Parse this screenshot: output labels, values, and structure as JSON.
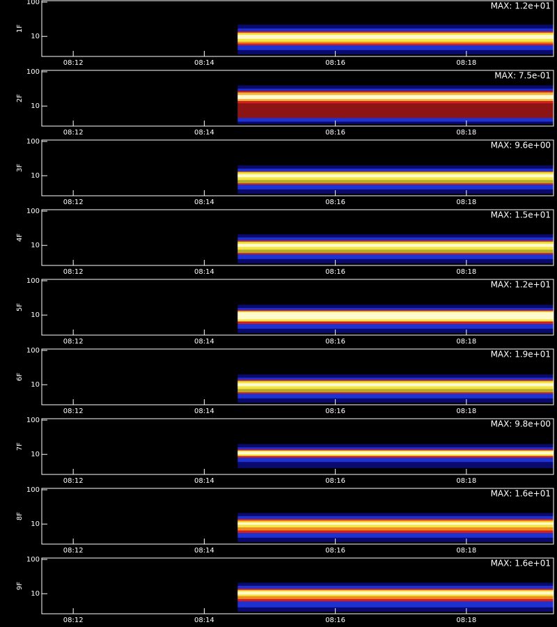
{
  "chart_data": [
    {
      "type": "spectrogram",
      "ylabel": "1F",
      "annotation": "MAX: 1.2e+01",
      "log": true,
      "xlim": [
        11.52,
        19.33
      ],
      "ylim": [
        2.6,
        110
      ],
      "xticks": [
        {
          "value": 12,
          "label": "08:12"
        },
        {
          "value": 14,
          "label": "08:14"
        },
        {
          "value": 16,
          "label": "08:16"
        },
        {
          "value": 18,
          "label": "08:18"
        }
      ],
      "yticks": [
        10,
        100
      ],
      "start": 14.51,
      "bands": [
        {
          "color": "#0a0a6e",
          "low": 3,
          "high": 22
        },
        {
          "color": "#1e32d2",
          "low": 4,
          "high": 17
        },
        {
          "color": "#d21e1e",
          "low": 5.5,
          "high": 14
        },
        {
          "color": "#f08c1e",
          "low": 6.2,
          "high": 13
        },
        {
          "color": "#f0e646",
          "low": 7,
          "high": 12.5
        },
        {
          "color": "#fffacd",
          "low": 8.5,
          "high": 11
        }
      ]
    },
    {
      "type": "spectrogram",
      "ylabel": "2F",
      "annotation": "MAX: 7.5e-01",
      "log": true,
      "xlim": [
        11.52,
        19.33
      ],
      "ylim": [
        2.6,
        110
      ],
      "xticks": [
        {
          "value": 12,
          "label": "08:12"
        },
        {
          "value": 14,
          "label": "08:14"
        },
        {
          "value": 16,
          "label": "08:16"
        },
        {
          "value": 18,
          "label": "08:18"
        }
      ],
      "yticks": [
        10,
        100
      ],
      "start": 14.51,
      "bands": [
        {
          "color": "#0a0a6e",
          "low": 3,
          "high": 40
        },
        {
          "color": "#1e32d2",
          "low": 3.5,
          "high": 32
        },
        {
          "color": "#8c1414",
          "low": 4.5,
          "high": 28
        },
        {
          "color": "#d21e1e",
          "low": 12,
          "high": 27
        },
        {
          "color": "#f0b43c",
          "low": 14,
          "high": 25
        },
        {
          "color": "#fffacd",
          "low": 16,
          "high": 21
        }
      ]
    },
    {
      "type": "spectrogram",
      "ylabel": "3F",
      "annotation": "MAX: 9.6e+00",
      "log": true,
      "xlim": [
        11.52,
        19.33
      ],
      "ylim": [
        2.6,
        110
      ],
      "xticks": [
        {
          "value": 12,
          "label": "08:12"
        },
        {
          "value": 14,
          "label": "08:14"
        },
        {
          "value": 16,
          "label": "08:16"
        },
        {
          "value": 18,
          "label": "08:18"
        }
      ],
      "yticks": [
        10,
        100
      ],
      "start": 14.51,
      "bands": [
        {
          "color": "#0a0a6e",
          "low": 3,
          "high": 20
        },
        {
          "color": "#1e32d2",
          "low": 4,
          "high": 16
        },
        {
          "color": "#d21e1e",
          "low": 5.5,
          "high": 13.5
        },
        {
          "color": "#b4aa28",
          "low": 6,
          "high": 13
        },
        {
          "color": "#f0e646",
          "low": 7.5,
          "high": 12.5
        },
        {
          "color": "#fffacd",
          "low": 9,
          "high": 11
        }
      ]
    },
    {
      "type": "spectrogram",
      "ylabel": "4F",
      "annotation": "MAX: 1.5e+01",
      "log": true,
      "xlim": [
        11.52,
        19.33
      ],
      "ylim": [
        2.6,
        110
      ],
      "xticks": [
        {
          "value": 12,
          "label": "08:12"
        },
        {
          "value": 14,
          "label": "08:14"
        },
        {
          "value": 16,
          "label": "08:16"
        },
        {
          "value": 18,
          "label": "08:18"
        }
      ],
      "yticks": [
        10,
        100
      ],
      "start": 14.51,
      "bands": [
        {
          "color": "#0a0a6e",
          "low": 3,
          "high": 21
        },
        {
          "color": "#1e32d2",
          "low": 4,
          "high": 17
        },
        {
          "color": "#d21e1e",
          "low": 5.5,
          "high": 14
        },
        {
          "color": "#b4aa28",
          "low": 6,
          "high": 13
        },
        {
          "color": "#f0e646",
          "low": 7.5,
          "high": 12.5
        },
        {
          "color": "#fffacd",
          "low": 9,
          "high": 11
        }
      ]
    },
    {
      "type": "spectrogram",
      "ylabel": "5F",
      "annotation": "MAX: 1.2e+01",
      "log": true,
      "xlim": [
        11.52,
        19.33
      ],
      "ylim": [
        2.6,
        110
      ],
      "xticks": [
        {
          "value": 12,
          "label": "08:12"
        },
        {
          "value": 14,
          "label": "08:14"
        },
        {
          "value": 16,
          "label": "08:16"
        },
        {
          "value": 18,
          "label": "08:18"
        }
      ],
      "yticks": [
        10,
        100
      ],
      "start": 14.51,
      "bands": [
        {
          "color": "#0a0a6e",
          "low": 3,
          "high": 20
        },
        {
          "color": "#1e32d2",
          "low": 4,
          "high": 16
        },
        {
          "color": "#d21e1e",
          "low": 5.5,
          "high": 14
        },
        {
          "color": "#f0e646",
          "low": 6.5,
          "high": 13
        },
        {
          "color": "#fffacd",
          "low": 7.5,
          "high": 12
        }
      ]
    },
    {
      "type": "spectrogram",
      "ylabel": "6F",
      "annotation": "MAX: 1.9e+01",
      "log": true,
      "xlim": [
        11.52,
        19.33
      ],
      "ylim": [
        2.6,
        110
      ],
      "xticks": [
        {
          "value": 12,
          "label": "08:12"
        },
        {
          "value": 14,
          "label": "08:14"
        },
        {
          "value": 16,
          "label": "08:16"
        },
        {
          "value": 18,
          "label": "08:18"
        }
      ],
      "yticks": [
        10,
        100
      ],
      "start": 14.51,
      "bands": [
        {
          "color": "#0a0a6e",
          "low": 3,
          "high": 20
        },
        {
          "color": "#1e32d2",
          "low": 4,
          "high": 16
        },
        {
          "color": "#d21e1e",
          "low": 5.5,
          "high": 14
        },
        {
          "color": "#b4aa28",
          "low": 6,
          "high": 13
        },
        {
          "color": "#f0e646",
          "low": 7.5,
          "high": 12.5
        },
        {
          "color": "#fffacd",
          "low": 9,
          "high": 11
        }
      ]
    },
    {
      "type": "spectrogram",
      "ylabel": "7F",
      "annotation": "MAX: 9.8e+00",
      "log": true,
      "xlim": [
        11.52,
        19.33
      ],
      "ylim": [
        2.6,
        110
      ],
      "xticks": [
        {
          "value": 12,
          "label": "08:12"
        },
        {
          "value": 14,
          "label": "08:14"
        },
        {
          "value": 16,
          "label": "08:16"
        },
        {
          "value": 18,
          "label": "08:18"
        }
      ],
      "yticks": [
        10,
        100
      ],
      "start": 14.51,
      "bands": [
        {
          "color": "#0a0a6e",
          "low": 4,
          "high": 20
        },
        {
          "color": "#1e32d2",
          "low": 6,
          "high": 16
        },
        {
          "color": "#d21e1e",
          "low": 8,
          "high": 14
        },
        {
          "color": "#f0e646",
          "low": 9,
          "high": 13
        },
        {
          "color": "#fffacd",
          "low": 10,
          "high": 12
        }
      ]
    },
    {
      "type": "spectrogram",
      "ylabel": "8F",
      "annotation": "MAX: 1.6e+01",
      "log": true,
      "xlim": [
        11.52,
        19.33
      ],
      "ylim": [
        2.6,
        110
      ],
      "xticks": [
        {
          "value": 12,
          "label": "08:12"
        },
        {
          "value": 14,
          "label": "08:14"
        },
        {
          "value": 16,
          "label": "08:16"
        },
        {
          "value": 18,
          "label": "08:18"
        }
      ],
      "yticks": [
        10,
        100
      ],
      "start": 14.51,
      "bands": [
        {
          "color": "#0a0a6e",
          "low": 3,
          "high": 21
        },
        {
          "color": "#1e32d2",
          "low": 4,
          "high": 17
        },
        {
          "color": "#d21e1e",
          "low": 5.5,
          "high": 14
        },
        {
          "color": "#f08c1e",
          "low": 6.5,
          "high": 13
        },
        {
          "color": "#f0e646",
          "low": 8,
          "high": 12
        },
        {
          "color": "#fffacd",
          "low": 9.5,
          "high": 11
        }
      ]
    },
    {
      "type": "spectrogram",
      "ylabel": "9F",
      "annotation": "MAX: 1.6e+01",
      "log": true,
      "xlim": [
        11.52,
        19.33
      ],
      "ylim": [
        2.6,
        110
      ],
      "xticks": [
        {
          "value": 12,
          "label": "08:12"
        },
        {
          "value": 14,
          "label": "08:14"
        },
        {
          "value": 16,
          "label": "08:16"
        },
        {
          "value": 18,
          "label": "08:18"
        }
      ],
      "yticks": [
        10,
        100
      ],
      "start": 14.51,
      "bands": [
        {
          "color": "#0a0a6e",
          "low": 3,
          "high": 21
        },
        {
          "color": "#1e32d2",
          "low": 4,
          "high": 17
        },
        {
          "color": "#d21e1e",
          "low": 6,
          "high": 14
        },
        {
          "color": "#f08c1e",
          "low": 7,
          "high": 13
        },
        {
          "color": "#f0e646",
          "low": 8.5,
          "high": 12.5
        },
        {
          "color": "#fffacd",
          "low": 9.5,
          "high": 11.5
        }
      ]
    }
  ]
}
